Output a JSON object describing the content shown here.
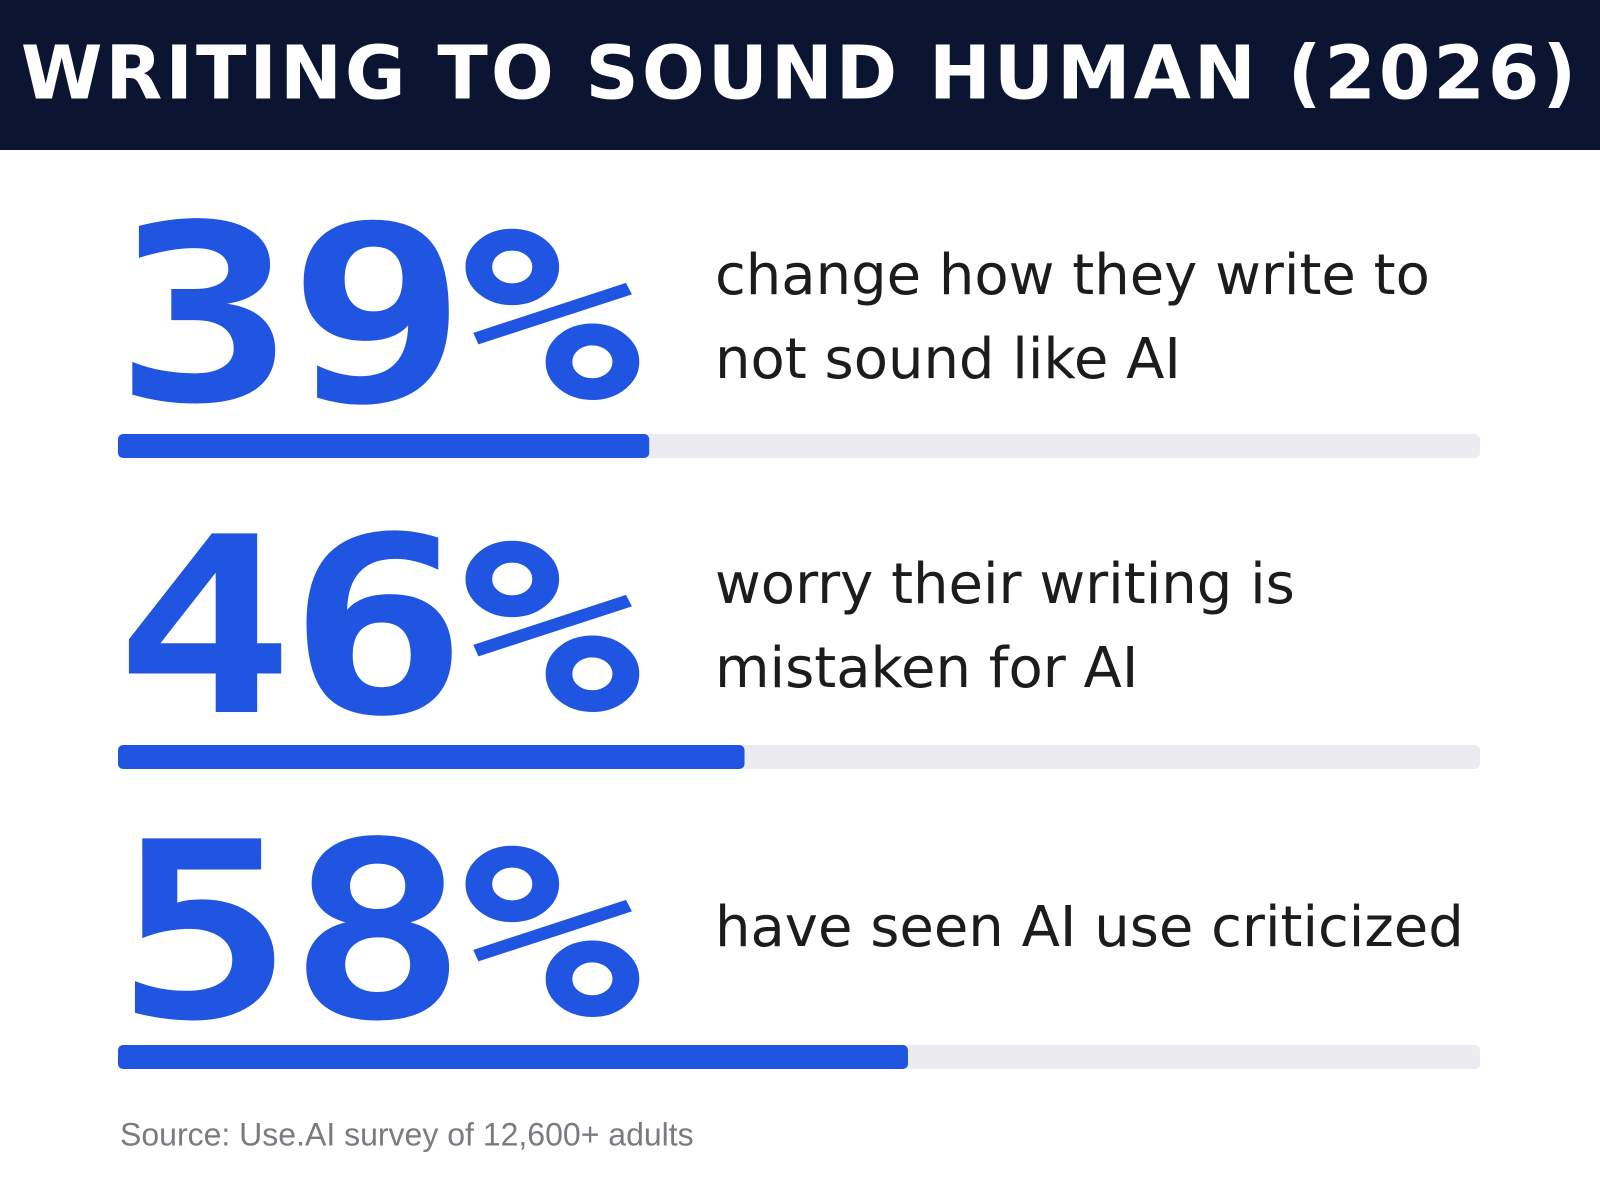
{
  "chart_data": {
    "type": "bar",
    "orientation": "horizontal",
    "title": "WRITING TO SOUND HUMAN (2026)",
    "categories": [
      "change how they write to not sound like AI",
      "worry their writing is mistaken for AI",
      "have seen AI use criticized"
    ],
    "values": [
      39,
      46,
      58
    ],
    "value_labels": [
      "39%",
      "46%",
      "58%"
    ],
    "color": "#1f55e0",
    "track_color": "#ececf0",
    "xlim": [
      0,
      100
    ],
    "source": "Source: Use.AI survey of 12,600+ adults"
  }
}
